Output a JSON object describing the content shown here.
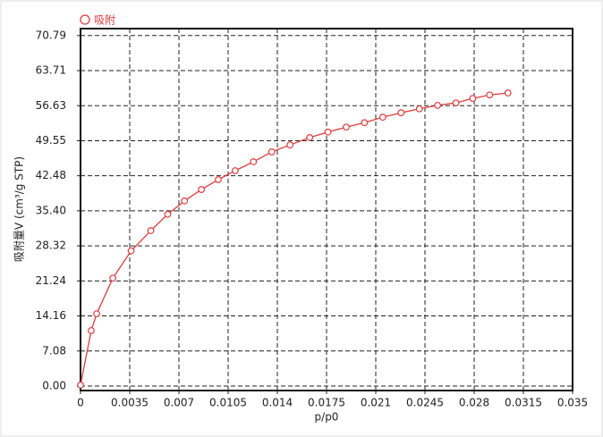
{
  "chart_data": {
    "type": "line",
    "x_label": "p/p0",
    "y_label": "吸附量V (cm³/g STP)",
    "xlim": [
      0,
      0.035
    ],
    "ylim": [
      -0.9,
      72.2
    ],
    "xticks": [
      0,
      0.0035,
      0.007,
      0.0105,
      0.014,
      0.0175,
      0.021,
      0.0245,
      0.028,
      0.0315,
      0.035
    ],
    "yticks": [
      {
        "value": 0,
        "label": "0.00"
      },
      7.08,
      14.16,
      21.24,
      28.32,
      {
        "value": 35.4,
        "label": "35.40"
      },
      42.48,
      49.55,
      56.63,
      63.71,
      70.79
    ],
    "grid": true,
    "legend": "top-left",
    "series": [
      {
        "name": "吸附",
        "color": "#e03c3c",
        "x": [
          0,
          0.00076,
          0.00115,
          0.0023,
          0.0036,
          0.005,
          0.0062,
          0.0074,
          0.0086,
          0.0098,
          0.011,
          0.0123,
          0.0136,
          0.0149,
          0.0163,
          0.0176,
          0.0189,
          0.0202,
          0.0215,
          0.0228,
          0.0241,
          0.0254,
          0.0267,
          0.0279,
          0.0291,
          0.0304
        ],
        "values": [
          0.2,
          11.2,
          14.6,
          21.8,
          27.3,
          31.4,
          34.7,
          37.4,
          39.7,
          41.7,
          43.5,
          45.3,
          47.3,
          48.7,
          50.2,
          51.3,
          52.3,
          53.2,
          54.3,
          55.2,
          56.0,
          56.7,
          57.2,
          58.1,
          58.8,
          59.2
        ]
      }
    ]
  }
}
